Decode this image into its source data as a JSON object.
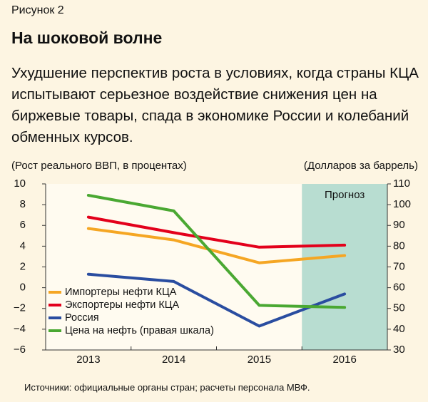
{
  "figure_label": "Рисунок 2",
  "title": "На шоковой волне",
  "subtitle": "Ухудшение перспектив роста в условиях, когда страны КЦА испытывают серьезное воздействие снижения цен на биржевые товары, спада в экономике России и колебаний обменных курсов.",
  "source": "Источники: официальные органы стран; расчеты персонала МВФ.",
  "chart_data": {
    "type": "line",
    "categories": [
      "2013",
      "2014",
      "2015",
      "2016"
    ],
    "left_axis": {
      "label": "(Рост реального ВВП, в процентах)",
      "range": [
        -6,
        10
      ],
      "ticks": [
        "10",
        "8",
        "6",
        "4",
        "2",
        "0",
        "−2",
        "−4",
        "−6"
      ]
    },
    "right_axis": {
      "label": "(Долларов за баррель)",
      "range": [
        30,
        110
      ],
      "ticks": [
        "110",
        "100",
        "90",
        "80",
        "70",
        "60",
        "50",
        "40",
        "30"
      ]
    },
    "forecast": {
      "label": "Прогноз",
      "from_category": "2016",
      "color": "#b8ddd1"
    },
    "series": [
      {
        "name": "Импортеры нефти КЦА",
        "axis": "left",
        "color": "#f5a623",
        "values": [
          5.7,
          4.6,
          2.4,
          3.1
        ]
      },
      {
        "name": "Экспортеры нефти КЦА",
        "axis": "left",
        "color": "#e3001b",
        "values": [
          6.8,
          5.3,
          3.9,
          4.1
        ]
      },
      {
        "name": "Россия",
        "axis": "left",
        "color": "#2a4da0",
        "values": [
          1.3,
          0.6,
          -3.7,
          -0.6
        ]
      },
      {
        "name": "Цена на нефть (правая шкала)",
        "axis": "right",
        "color": "#4aa832",
        "values": [
          104.5,
          97,
          51.5,
          50.5
        ]
      }
    ],
    "legend_position": "bottom-left",
    "grid": false
  }
}
